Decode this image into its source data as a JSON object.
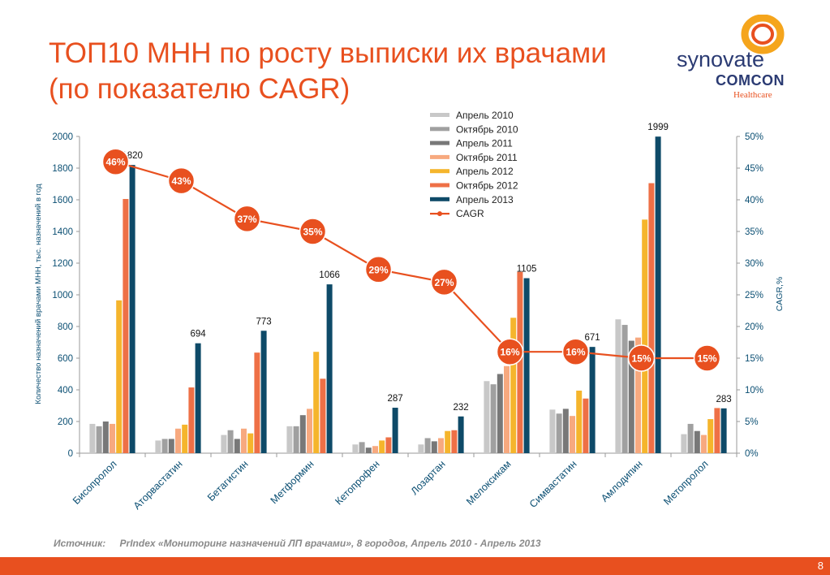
{
  "title": {
    "line1": "ТОП10 МНН по росту выписки их врачами",
    "line2": "(по показателю CAGR)"
  },
  "logo": {
    "word1": "synovate",
    "word2": "COMCON",
    "word3": "Healthcare",
    "colors": {
      "ring_outer": "#f5a51c",
      "ring_inner": "#e8501f",
      "text": "#2b3b73"
    }
  },
  "source": {
    "label": "Источник:",
    "text": "PrIndex «Мониторинг назначений ЛП врачами», 8 городов, Апрель 2010 - Апрель 2013"
  },
  "page_number": "8",
  "colors": {
    "accent": "#e8501f",
    "axis_text": "#0b4f73"
  },
  "chart_data": {
    "type": "bar",
    "categories": [
      "Бисопролол",
      "Аторвастатин",
      "Бетагистин",
      "Метформин",
      "Кетопрофен",
      "Лозартан",
      "Мелоксикам",
      "Симвастатин",
      "Амлодипин",
      "Метопролол"
    ],
    "series": [
      {
        "name": "Апрель 2010",
        "color": "#c8c8c8",
        "values": [
          185,
          80,
          115,
          170,
          55,
          55,
          455,
          275,
          845,
          120
        ]
      },
      {
        "name": "Октябрь 2010",
        "color": "#a0a0a0",
        "values": [
          170,
          90,
          145,
          170,
          70,
          95,
          435,
          250,
          810,
          185
        ]
      },
      {
        "name": "Апрель 2011",
        "color": "#787878",
        "values": [
          200,
          90,
          90,
          240,
          35,
          75,
          500,
          280,
          710,
          140
        ]
      },
      {
        "name": "Октябрь 2011",
        "color": "#f7a97f",
        "values": [
          185,
          155,
          155,
          280,
          45,
          95,
          550,
          235,
          730,
          115
        ]
      },
      {
        "name": "Апрель 2012",
        "color": "#f5b52c",
        "values": [
          965,
          180,
          125,
          640,
          80,
          140,
          855,
          395,
          1475,
          215
        ]
      },
      {
        "name": "Октябрь 2012",
        "color": "#ee7046",
        "values": [
          1605,
          415,
          635,
          470,
          100,
          145,
          1145,
          345,
          1705,
          285
        ]
      },
      {
        "name": "Апрель 2013",
        "color": "#0e4a68",
        "values": [
          1820,
          694,
          773,
          1066,
          287,
          232,
          1105,
          671,
          1999,
          283
        ]
      }
    ],
    "data_labels": [
      "1820",
      "694",
      "773",
      "1066",
      "287",
      "232",
      "1105",
      "671",
      "1999",
      "283"
    ],
    "line": {
      "name": "CAGR",
      "color": "#e8501f",
      "values": [
        46,
        43,
        37,
        35,
        29,
        27,
        16,
        16,
        15,
        15
      ],
      "labels": [
        "46%",
        "43%",
        "37%",
        "35%",
        "29%",
        "27%",
        "16%",
        "16%",
        "15%",
        "15%"
      ]
    },
    "ylabel": "Количество назначений врачами МНН, тыс. назначений в год",
    "y2label": "CAGR,%",
    "ylim": [
      0,
      2000
    ],
    "y2lim": [
      0,
      50
    ],
    "yticks": [
      "0",
      "200",
      "400",
      "600",
      "800",
      "1000",
      "1200",
      "1400",
      "1600",
      "1800",
      "2000"
    ],
    "y2ticks": [
      "0%",
      "5%",
      "10%",
      "15%",
      "20%",
      "25%",
      "30%",
      "35%",
      "40%",
      "45%",
      "50%"
    ],
    "grid": false,
    "legend_position": "top-center"
  }
}
